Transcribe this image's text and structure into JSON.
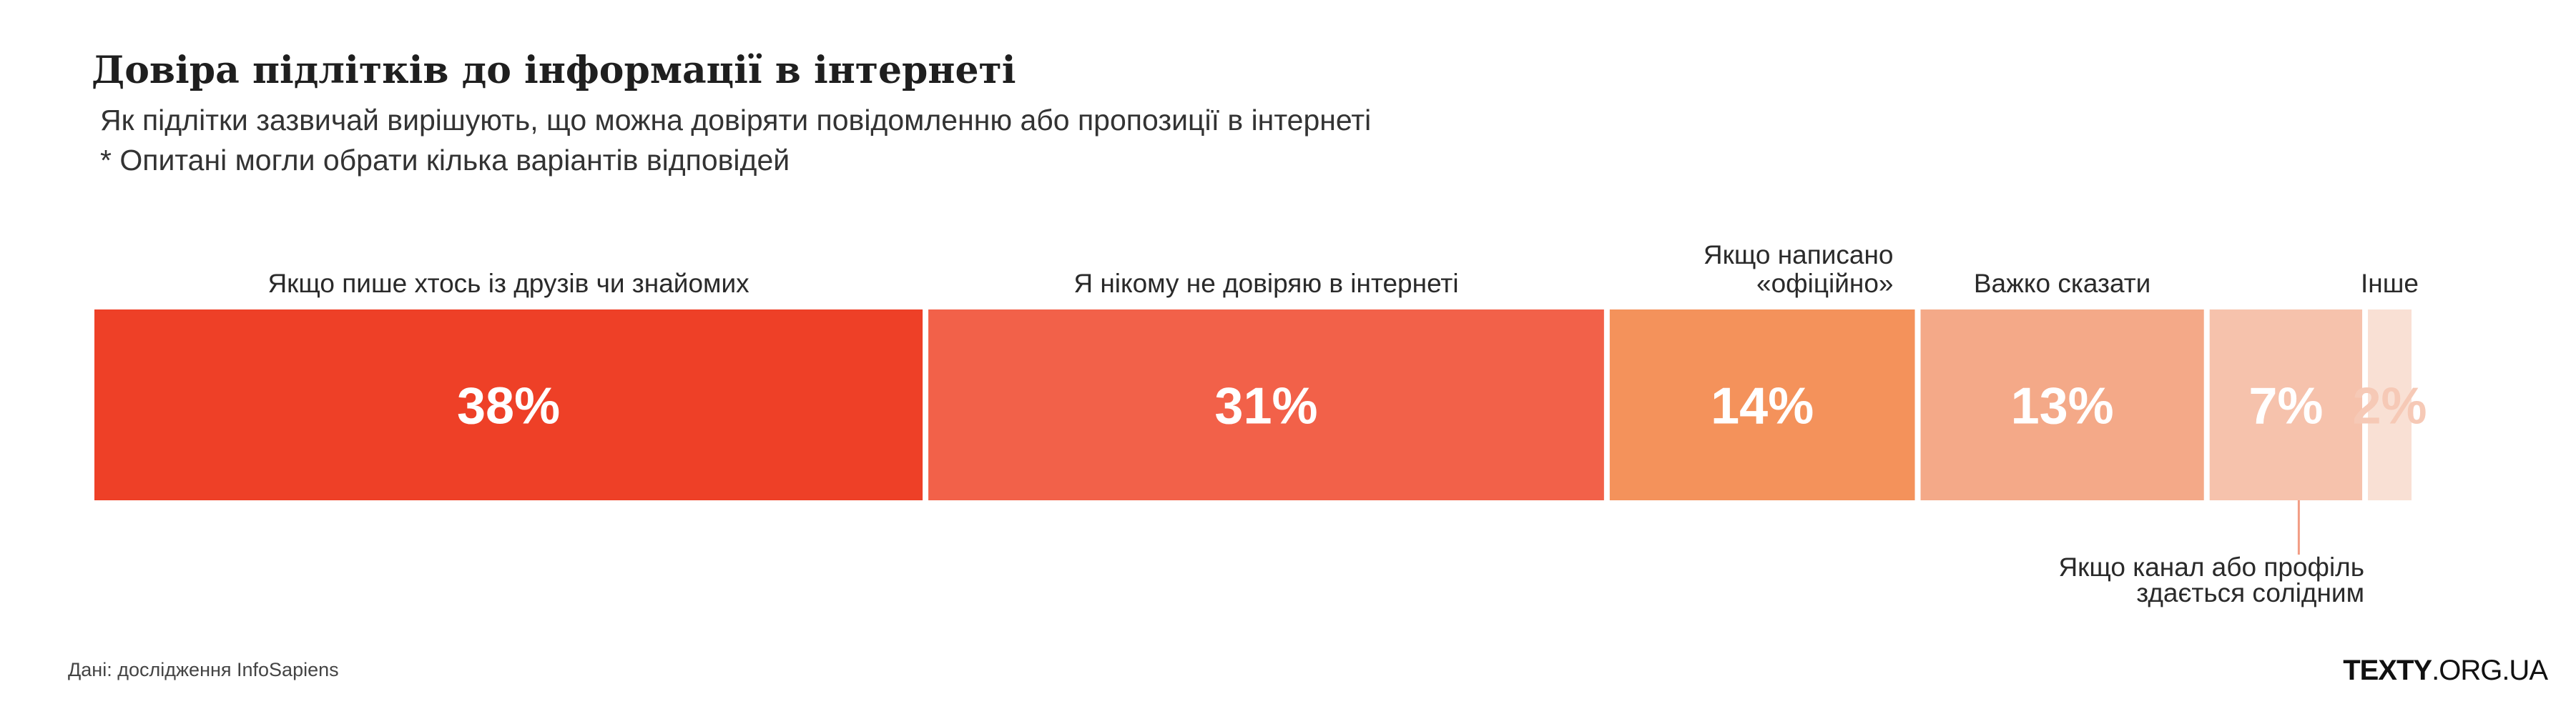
{
  "chart_data": {
    "type": "bar",
    "orientation": "stacked-horizontal",
    "title": "Довіра підлітків до інформації в інтернеті",
    "subtitle": "Як підлітки зазвичай вирішують, що можна довіряти повідомленню або пропозиції в інтернеті",
    "note": "* Опитані могли обрати кілька варіантів відповідей",
    "unit": "%",
    "categories": [
      "Якщо пише хтось із друзів чи знайомих",
      "Я нікому не довіряю в інтернеті",
      "Якщо написано «офіційно»",
      "Важко сказати",
      "Якщо канал або профіль здається солідним",
      "Інше"
    ],
    "category_label_lines": [
      [
        "Якщо пише хтось із друзів чи знайомих"
      ],
      [
        "Я нікому не довіряю в інтернеті"
      ],
      [
        "Якщо написано",
        "«офіційно»"
      ],
      [
        "Важко сказати"
      ],
      [
        "Якщо канал або профіль",
        "здається солідним"
      ],
      [
        "Інше"
      ]
    ],
    "values": [
      38,
      31,
      14,
      13,
      7,
      2
    ],
    "value_labels": [
      "38%",
      "31%",
      "14%",
      "13%",
      "7%",
      "2%"
    ],
    "colors": [
      "#ee4027",
      "#f26149",
      "#f4925b",
      "#f4a988",
      "#f6c2ac",
      "#f9e0d4"
    ],
    "label_placement": [
      "above",
      "above",
      "above",
      "above",
      "below",
      "above"
    ],
    "grid": false,
    "legend": "none"
  },
  "footer": {
    "source": "Дані: дослідження InfoSapiens",
    "brand_bold": "TEXTY",
    "brand_rest": ".ORG.UA"
  }
}
